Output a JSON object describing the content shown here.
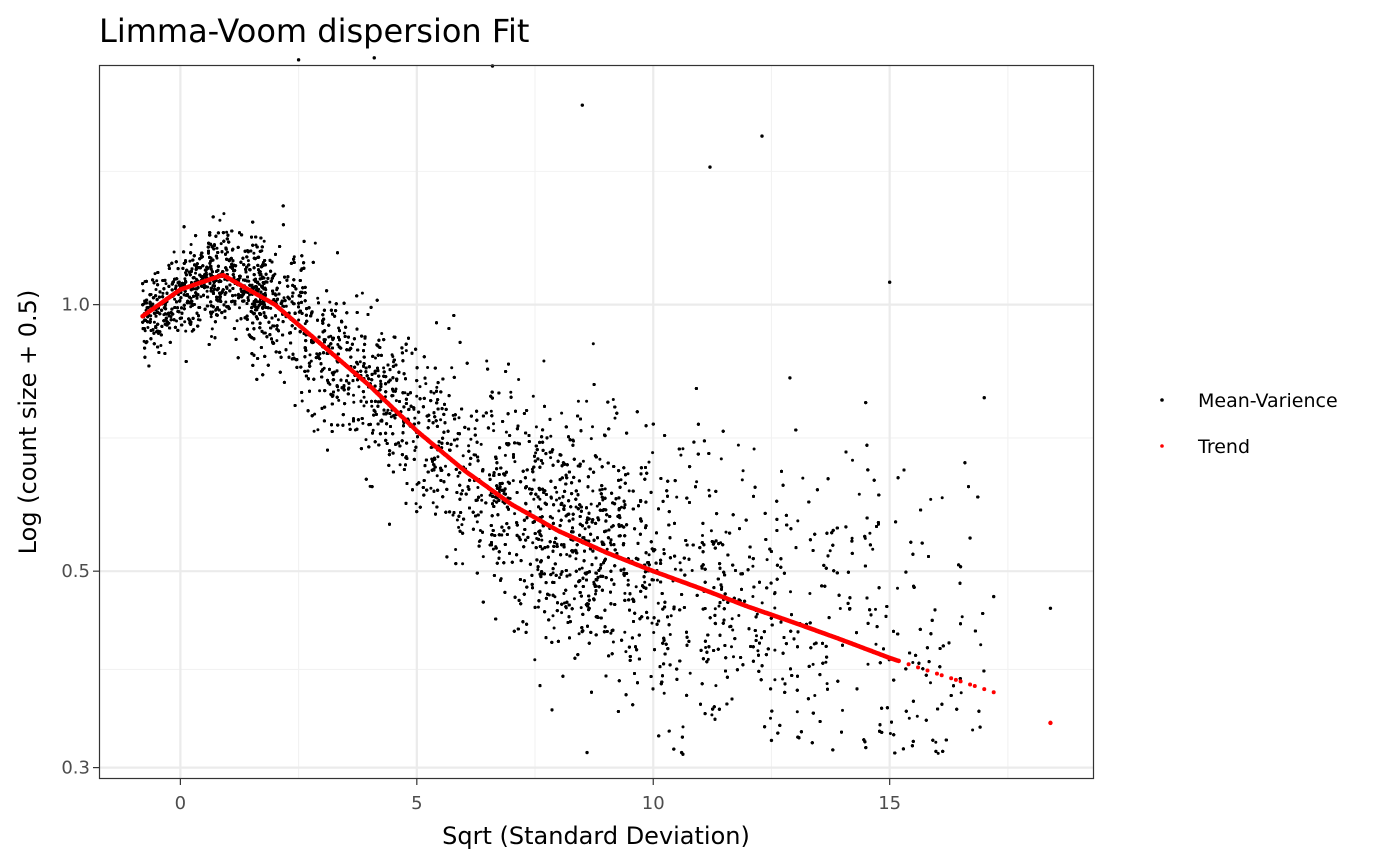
{
  "chart_data": {
    "type": "scatter",
    "title": "Limma-Voom dispersion Fit",
    "xlabel": "Sqrt (Standard Deviation)",
    "ylabel": "Log (count size + 0.5)",
    "y_scale": "log",
    "xlim": [
      -1.7,
      19.3
    ],
    "ylim": [
      0.292,
      1.86
    ],
    "x_ticks": [
      0,
      5,
      10,
      15
    ],
    "x_tick_labels": [
      "0",
      "5",
      "10",
      "15"
    ],
    "y_ticks": [
      0.3,
      0.5,
      1.0
    ],
    "y_tick_labels": [
      "0.3",
      "0.5",
      "1.0"
    ],
    "grid": true,
    "legend_position": "right",
    "series": [
      {
        "name": "Mean-Varience",
        "color": "#000000",
        "description_points": "dense cloud of gene-level points, centered along trend with wider spread at high x",
        "outliers": [
          {
            "x": 18.4,
            "y": 0.454
          },
          {
            "x": 17.2,
            "y": 0.468
          },
          {
            "x": 17.0,
            "y": 0.785
          },
          {
            "x": 15.0,
            "y": 1.06
          },
          {
            "x": 12.3,
            "y": 1.55
          },
          {
            "x": 2.5,
            "y": 1.89
          },
          {
            "x": 4.1,
            "y": 1.9
          },
          {
            "x": 6.6,
            "y": 1.86
          },
          {
            "x": 8.5,
            "y": 1.68
          },
          {
            "x": 11.2,
            "y": 1.43
          },
          {
            "x": 12.5,
            "y": 0.322
          },
          {
            "x": 8.6,
            "y": 0.312
          },
          {
            "x": 10.6,
            "y": 0.312
          },
          {
            "x": 16.7,
            "y": 0.545
          },
          {
            "x": 15.9,
            "y": 0.44
          }
        ]
      },
      {
        "name": "Trend",
        "color": "#ff0000",
        "points": [
          {
            "x": -0.8,
            "y": 0.97
          },
          {
            "x": 0.0,
            "y": 1.04
          },
          {
            "x": 0.9,
            "y": 1.08
          },
          {
            "x": 2.0,
            "y": 1.0
          },
          {
            "x": 3.0,
            "y": 0.9
          },
          {
            "x": 4.0,
            "y": 0.81
          },
          {
            "x": 5.0,
            "y": 0.72
          },
          {
            "x": 6.0,
            "y": 0.65
          },
          {
            "x": 7.0,
            "y": 0.595
          },
          {
            "x": 8.0,
            "y": 0.555
          },
          {
            "x": 9.0,
            "y": 0.525
          },
          {
            "x": 10.0,
            "y": 0.5
          },
          {
            "x": 11.0,
            "y": 0.478
          },
          {
            "x": 12.0,
            "y": 0.456
          },
          {
            "x": 13.0,
            "y": 0.437
          },
          {
            "x": 14.0,
            "y": 0.418
          },
          {
            "x": 15.0,
            "y": 0.399
          },
          {
            "x": 16.0,
            "y": 0.383
          },
          {
            "x": 17.2,
            "y": 0.365
          },
          {
            "x": 18.4,
            "y": 0.337
          }
        ]
      }
    ]
  }
}
